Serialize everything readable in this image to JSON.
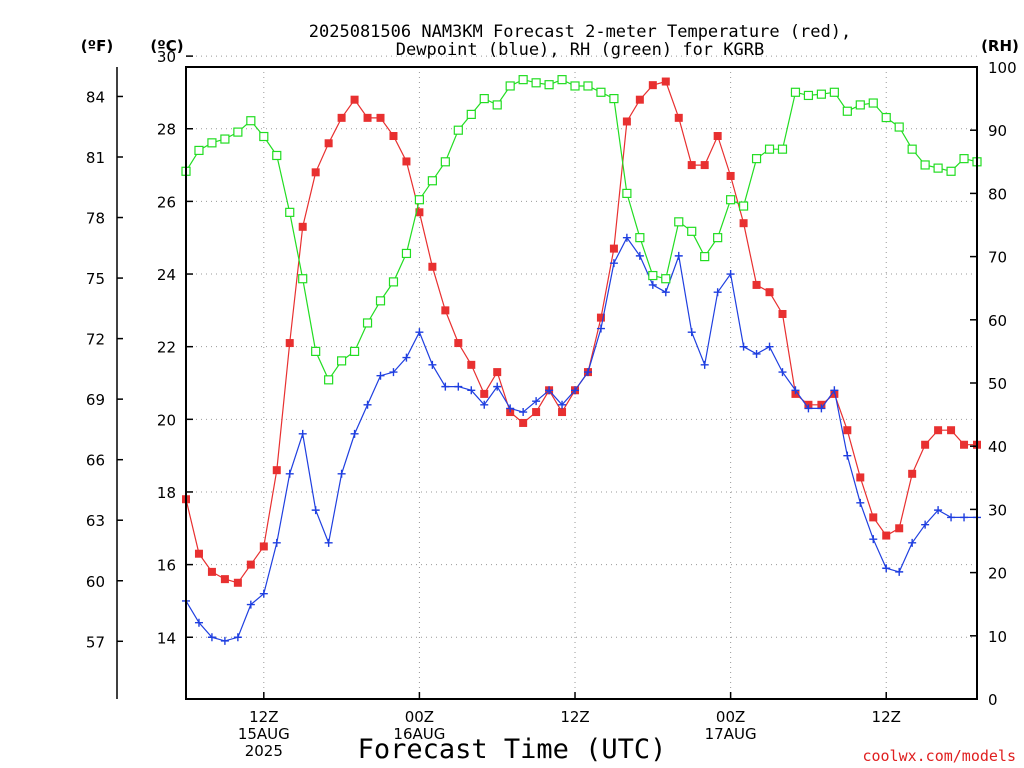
{
  "title_line1": "2025081506 NAM3KM Forecast 2-meter Temperature (red),",
  "title_line2": "Dewpoint (blue), RH (green) for KGRB",
  "unit_f": "(ºF)",
  "unit_c": "(ºC)",
  "unit_rh": "(RH)",
  "xlabel": "Forecast Time (UTC)",
  "credit": "coolwx.com/models",
  "chart_data": {
    "type": "line",
    "x": [
      0,
      1,
      2,
      3,
      4,
      5,
      6,
      7,
      8,
      9,
      10,
      11,
      12,
      13,
      14,
      15,
      16,
      17,
      18,
      19,
      20,
      21,
      22,
      23,
      24,
      25,
      26,
      27,
      28,
      29,
      30,
      31,
      32,
      33,
      34,
      35,
      36,
      37,
      38,
      39,
      40,
      41,
      42,
      43,
      44,
      45,
      46,
      47,
      48,
      49,
      50,
      51,
      52,
      53,
      54,
      55,
      56,
      57,
      58,
      59,
      60,
      61
    ],
    "x_tick_hours": [
      6,
      18,
      30,
      42,
      54
    ],
    "x_tick_labels": [
      [
        "12Z",
        "15AUG",
        "2025"
      ],
      [
        "00Z",
        "16AUG"
      ],
      [
        "12Z"
      ],
      [
        "00Z",
        "17AUG"
      ],
      [
        "12Z"
      ]
    ],
    "xlim": [
      0,
      61
    ],
    "y_left_celsius": {
      "ylim": [
        12.3,
        29.7
      ],
      "ticks": [
        14,
        16,
        18,
        20,
        22,
        24,
        26,
        28,
        30
      ]
    },
    "y_left_fahrenheit": {
      "ticks": [
        57,
        60,
        63,
        66,
        69,
        72,
        75,
        78,
        81,
        84
      ]
    },
    "y_right_rh": {
      "ylim": [
        0,
        100
      ],
      "ticks": [
        0,
        10,
        20,
        30,
        40,
        50,
        60,
        70,
        80,
        90,
        100
      ]
    },
    "grid": true,
    "series": [
      {
        "color": "#e83030",
        "marker": "filled-square",
        "axis": "celsius",
        "values": [
          17.8,
          16.3,
          15.8,
          15.6,
          15.5,
          16.0,
          16.5,
          18.6,
          22.1,
          25.3,
          26.8,
          27.6,
          28.3,
          28.8,
          28.3,
          28.3,
          27.8,
          27.1,
          25.7,
          24.2,
          23.0,
          22.1,
          21.5,
          20.7,
          21.3,
          20.2,
          19.9,
          20.2,
          20.8,
          20.2,
          20.8,
          21.3,
          22.8,
          24.7,
          28.2,
          28.8,
          29.2,
          29.3,
          28.3,
          27.0,
          27.0,
          27.8,
          26.7,
          25.4,
          23.7,
          23.5,
          22.9,
          20.7,
          20.4,
          20.4,
          20.7,
          19.7,
          18.4,
          17.3,
          16.8,
          17.0,
          18.5,
          19.3,
          19.7,
          19.7,
          19.3,
          19.3
        ]
      },
      {
        "color": "#1f3fe0",
        "marker": "plus",
        "axis": "celsius",
        "values": [
          15.0,
          14.4,
          14.0,
          13.9,
          14.0,
          14.9,
          15.2,
          16.6,
          18.5,
          19.6,
          17.5,
          16.6,
          18.5,
          19.6,
          20.4,
          21.2,
          21.3,
          21.7,
          22.4,
          21.5,
          20.9,
          20.9,
          20.8,
          20.4,
          20.9,
          20.3,
          20.2,
          20.5,
          20.8,
          20.4,
          20.8,
          21.3,
          22.5,
          24.3,
          25.0,
          24.5,
          23.7,
          23.5,
          24.5,
          22.4,
          21.5,
          23.5,
          24.0,
          22.0,
          21.8,
          22.0,
          21.3,
          20.8,
          20.3,
          20.3,
          20.8,
          19.0,
          17.7,
          16.7,
          15.9,
          15.8,
          16.6,
          17.1,
          17.5,
          17.3,
          17.3,
          17.3
        ]
      },
      {
        "color": "#22dd22",
        "marker": "open-square",
        "axis": "rh",
        "values": [
          83.5,
          86.8,
          88.0,
          88.6,
          89.7,
          91.5,
          89.0,
          86.0,
          77.0,
          66.5,
          55.0,
          50.5,
          53.5,
          55.0,
          59.5,
          63.0,
          66.0,
          70.5,
          79.0,
          82.0,
          85.0,
          90.0,
          92.5,
          95.0,
          94.0,
          97.0,
          98.0,
          97.5,
          97.2,
          98.0,
          97.0,
          97.0,
          96.0,
          95.0,
          80.0,
          73.0,
          67.0,
          66.5,
          75.5,
          74.0,
          70.0,
          73.0,
          79.0,
          78.0,
          85.5,
          87.0,
          87.0,
          96.0,
          95.5,
          95.7,
          96.0,
          93.0,
          94.0,
          94.3,
          92.0,
          90.5,
          87.0,
          84.5,
          84.0,
          83.5,
          85.5,
          85.0
        ]
      }
    ]
  }
}
